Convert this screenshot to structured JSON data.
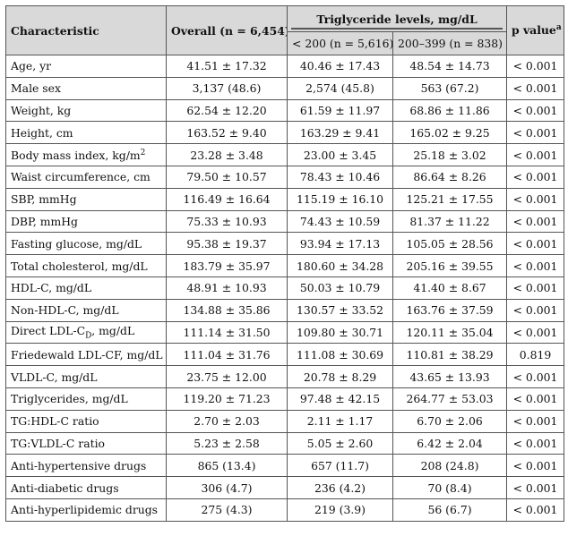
{
  "header": {
    "characteristic": "Characteristic",
    "overall": "Overall (n = 6,454)",
    "group": "Triglyceride levels, mg/dL",
    "sub1": "< 200 (n = 5,616)",
    "sub2": "200–399 (n = 838)",
    "pvalue": "p value",
    "pvalue_sup": "a"
  },
  "rows": [
    {
      "name": "Age, yr",
      "overall": "41.51 ± 17.32",
      "lt200": "40.46 ± 17.43",
      "r200": "48.54 ± 14.73",
      "p": "< 0.001"
    },
    {
      "name": "Male sex",
      "overall": "3,137 (48.6)",
      "lt200": "2,574 (45.8)",
      "r200": "563 (67.2)",
      "p": "< 0.001"
    },
    {
      "name": "Weight, kg",
      "overall": "62.54 ± 12.20",
      "lt200": "61.59 ± 11.97",
      "r200": "68.86 ± 11.86",
      "p": "< 0.001"
    },
    {
      "name": "Height, cm",
      "overall": "163.52 ± 9.40",
      "lt200": "163.29 ± 9.41",
      "r200": "165.02 ± 9.25",
      "p": "< 0.001"
    },
    {
      "name": "Body mass index, kg/m",
      "name_sup": "2",
      "overall": "23.28 ± 3.48",
      "lt200": "23.00 ± 3.45",
      "r200": "25.18 ± 3.02",
      "p": "< 0.001"
    },
    {
      "name": "Waist circumference, cm",
      "overall": "79.50 ± 10.57",
      "lt200": "78.43 ± 10.46",
      "r200": "86.64 ± 8.26",
      "p": "< 0.001"
    },
    {
      "name": "SBP, mmHg",
      "overall": "116.49 ± 16.64",
      "lt200": "115.19 ± 16.10",
      "r200": "125.21 ± 17.55",
      "p": "< 0.001"
    },
    {
      "name": "DBP, mmHg",
      "overall": "75.33 ± 10.93",
      "lt200": "74.43 ± 10.59",
      "r200": "81.37 ± 11.22",
      "p": "< 0.001"
    },
    {
      "name": "Fasting glucose, mg/dL",
      "overall": "95.38 ± 19.37",
      "lt200": "93.94 ± 17.13",
      "r200": "105.05 ± 28.56",
      "p": "< 0.001"
    },
    {
      "name": "Total cholesterol, mg/dL",
      "overall": "183.79 ± 35.97",
      "lt200": "180.60 ± 34.28",
      "r200": "205.16 ± 39.55",
      "p": "< 0.001"
    },
    {
      "name": "HDL-C, mg/dL",
      "overall": "48.91 ± 10.93",
      "lt200": "50.03 ± 10.79",
      "r200": "41.40 ± 8.67",
      "p": "< 0.001"
    },
    {
      "name": "Non-HDL-C, mg/dL",
      "overall": "134.88 ± 35.86",
      "lt200": "130.57 ± 33.52",
      "r200": "163.76 ± 37.59",
      "p": "< 0.001"
    },
    {
      "name": "Direct LDL-C",
      "name_sub": "D",
      "name_after": ", mg/dL",
      "overall": "111.14 ± 31.50",
      "lt200": "109.80 ± 30.71",
      "r200": "120.11 ± 35.04",
      "p": "< 0.001"
    },
    {
      "name": "Friedewald LDL-CF, mg/dL",
      "overall": "111.04 ± 31.76",
      "lt200": "111.08 ± 30.69",
      "r200": "110.81 ± 38.29",
      "p": "0.819"
    },
    {
      "name": "VLDL-C, mg/dL",
      "overall": "23.75 ± 12.00",
      "lt200": "20.78 ± 8.29",
      "r200": "43.65 ± 13.93",
      "p": "< 0.001"
    },
    {
      "name": "Triglycerides, mg/dL",
      "overall": "119.20 ± 71.23",
      "lt200": "97.48 ± 42.15",
      "r200": "264.77 ± 53.03",
      "p": "< 0.001"
    },
    {
      "name": "TG:HDL-C ratio",
      "overall": "2.70 ± 2.03",
      "lt200": "2.11 ± 1.17",
      "r200": "6.70 ± 2.06",
      "p": "< 0.001"
    },
    {
      "name": "TG:VLDL-C ratio",
      "overall": "5.23 ± 2.58",
      "lt200": "5.05 ± 2.60",
      "r200": "6.42 ± 2.04",
      "p": "< 0.001"
    },
    {
      "name": "Anti-hypertensive drugs",
      "overall": "865 (13.4)",
      "lt200": "657 (11.7)",
      "r200": "208 (24.8)",
      "p": "< 0.001"
    },
    {
      "name": "Anti-diabetic drugs",
      "overall": "306 (4.7)",
      "lt200": "236 (4.2)",
      "r200": "70 (8.4)",
      "p": "< 0.001"
    },
    {
      "name": "Anti-hyperlipidemic drugs",
      "overall": "275 (4.3)",
      "lt200": "219 (3.9)",
      "r200": "56 (6.7)",
      "p": "< 0.001"
    }
  ]
}
